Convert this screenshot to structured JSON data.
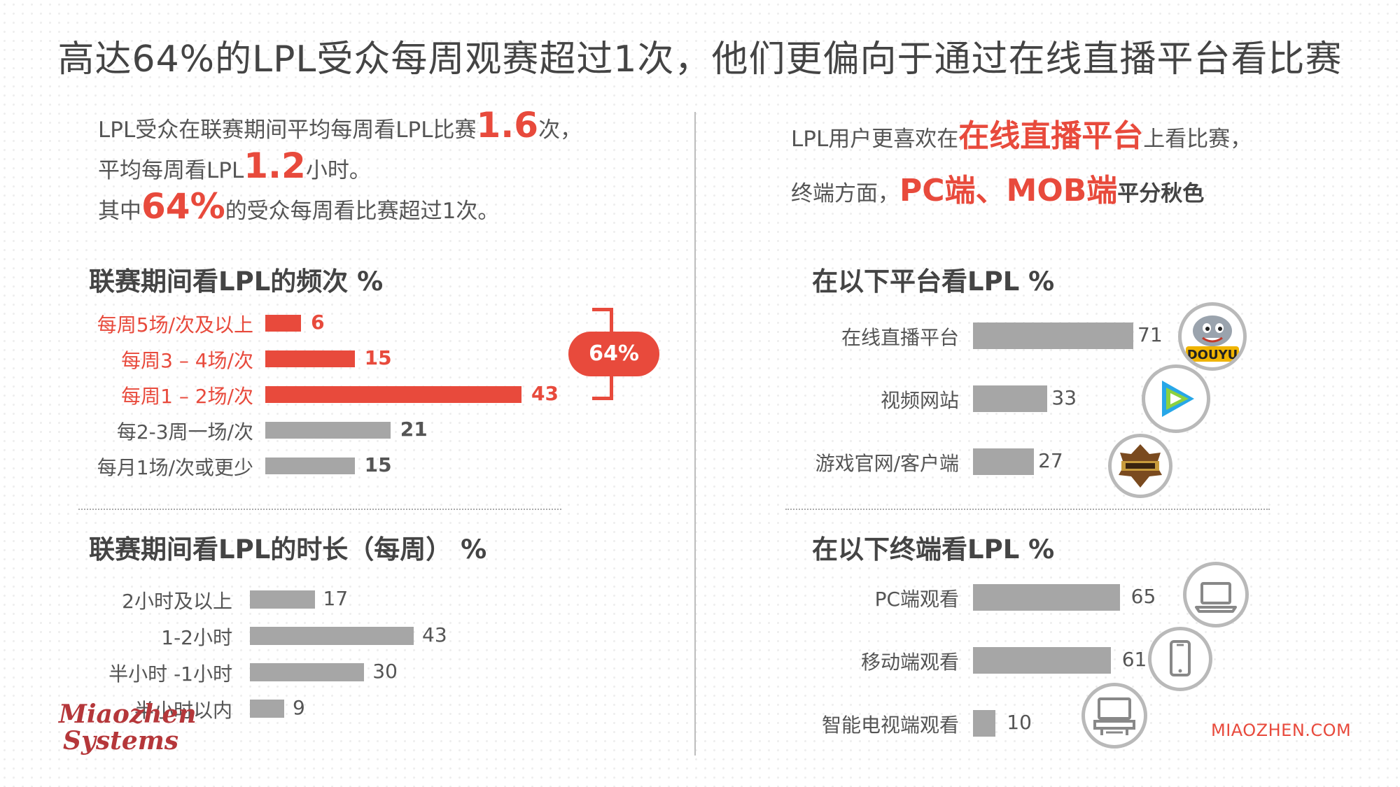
{
  "title": "高达64%的LPL受众每周观赛超过1次，他们更偏向于通过在线直播平台看比赛",
  "left_intro": {
    "line1_a": "LPL受众在联赛期间平均每周看LPL比赛",
    "line1_hl": "1.6",
    "line1_b": "次，",
    "line2_a": "平均每周看LPL",
    "line2_hl": "1.2",
    "line2_b": "小时。",
    "line3_a": "其中",
    "line3_hl": "64%",
    "line3_b": "的受众每周看比赛超过1次。"
  },
  "right_intro": {
    "line1_a": "LPL用户更喜欢在",
    "line1_hl": "在线直播平台",
    "line1_b": "上看比赛，",
    "line2_a": "终端方面，",
    "line2_hl": "PC端、MOB端",
    "line2_b": "平分秋色"
  },
  "bracket_label": "64%",
  "colors": {
    "accent": "#e84a3c",
    "bar_gray": "#a6a6a6",
    "text": "#555555"
  },
  "icons": [
    "douyu-logo-icon",
    "tencent-video-icon",
    "game-client-icon",
    "laptop-icon",
    "smartphone-icon",
    "smart-tv-icon"
  ],
  "logo": {
    "line1": "Miaozhen",
    "line2": "Systems"
  },
  "footer": "MIAOZHEN.COM",
  "chart_data": [
    {
      "type": "bar",
      "orientation": "horizontal",
      "title": "联赛期间看LPL的频次 %",
      "categories": [
        "每周5场/次及以上",
        "每周3 – 4场/次",
        "每周1 – 2场/次",
        "每2-3周一场/次",
        "每月1场/次或更少"
      ],
      "values": [
        6,
        15,
        43,
        21,
        15
      ],
      "highlighted": [
        true,
        true,
        true,
        false,
        false
      ],
      "xlim": [
        0,
        43
      ]
    },
    {
      "type": "bar",
      "orientation": "horizontal",
      "title": "联赛期间看LPL的时长（每周） %",
      "categories": [
        "2小时及以上",
        "1-2小时",
        "半小时 -1小时",
        "半小时以内"
      ],
      "values": [
        17,
        43,
        30,
        9
      ],
      "xlim": [
        0,
        43
      ]
    },
    {
      "type": "bar",
      "orientation": "horizontal",
      "title": "在以下平台看LPL %",
      "categories": [
        "在线直播平台",
        "视频网站",
        "游戏官网/客户端"
      ],
      "values": [
        71,
        33,
        27
      ],
      "xlim": [
        0,
        71
      ]
    },
    {
      "type": "bar",
      "orientation": "horizontal",
      "title": "在以下终端看LPL %",
      "categories": [
        "PC端观看",
        "移动端观看",
        "智能电视端观看"
      ],
      "values": [
        65,
        61,
        10
      ],
      "xlim": [
        0,
        71
      ]
    }
  ]
}
